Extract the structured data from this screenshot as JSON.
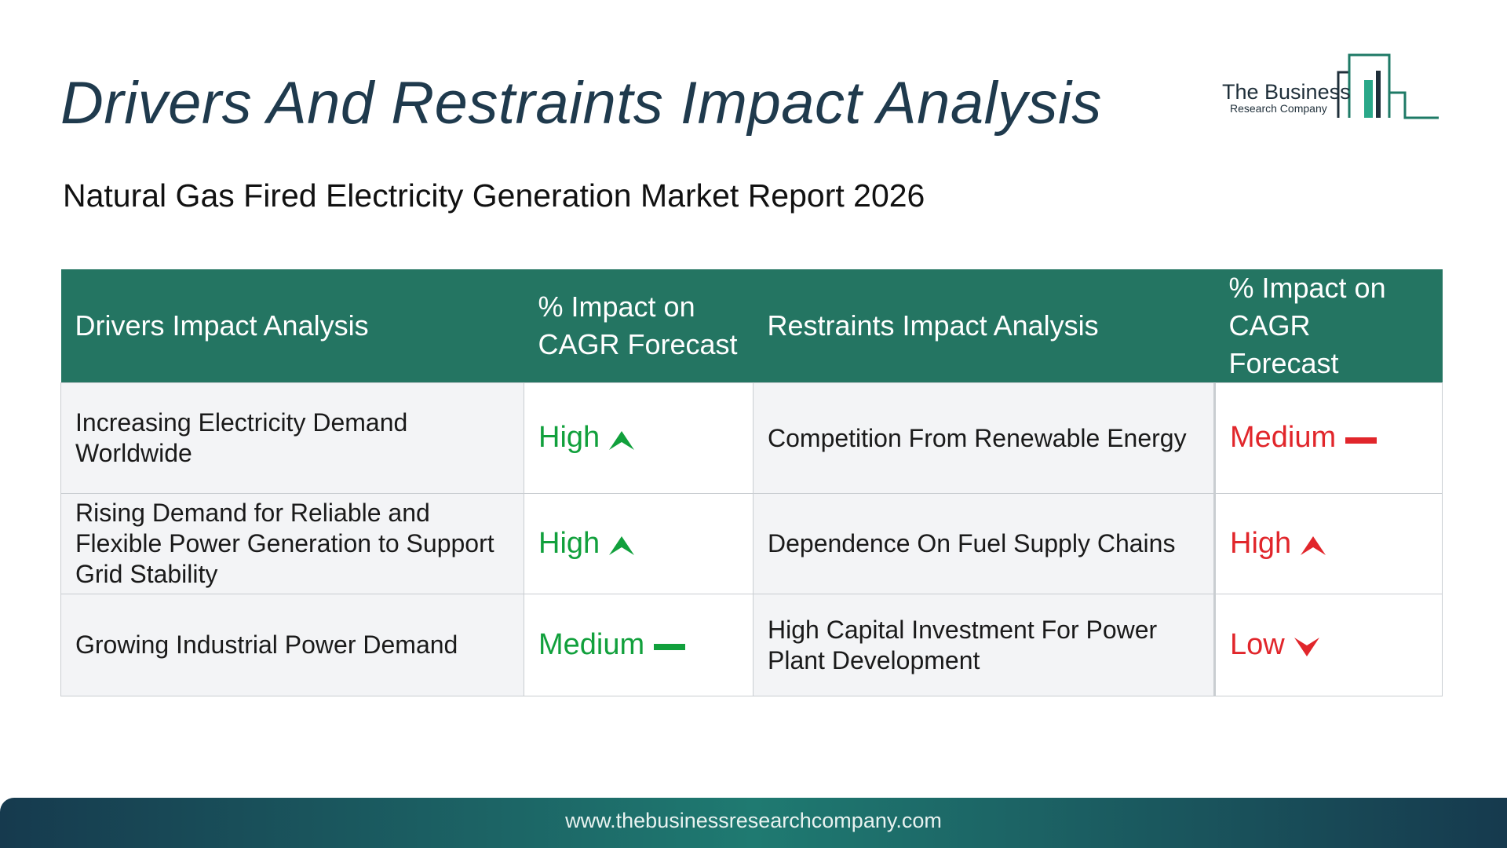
{
  "title": "Drivers And Restraints Impact Analysis",
  "subtitle": "Natural Gas Fired Electricity Generation Market Report 2026",
  "logo": {
    "name": "The Business",
    "tagline": "Research Company"
  },
  "table": {
    "headers": {
      "drivers": "Drivers Impact Analysis",
      "drivers_impact_line1": "% Impact on",
      "drivers_impact_line2": "CAGR Forecast",
      "restraints": "Restraints Impact Analysis",
      "restraints_impact_line1": "% Impact on",
      "restraints_impact_line2": "CAGR Forecast"
    },
    "rows": [
      {
        "driver": "Increasing Electricity Demand Worldwide",
        "driver_level": "High",
        "driver_icon": "up-arrow-icon",
        "restraint": "Competition From Renewable Energy",
        "restraint_level": "Medium",
        "restraint_icon": "dash-icon"
      },
      {
        "driver": "Rising Demand for Reliable and Flexible Power Generation to Support Grid Stability",
        "driver_level": "High",
        "driver_icon": "up-arrow-icon",
        "restraint": "Dependence On Fuel Supply Chains",
        "restraint_level": "High",
        "restraint_icon": "up-arrow-icon"
      },
      {
        "driver": "Growing Industrial Power Demand",
        "driver_level": "Medium",
        "driver_icon": "dash-icon",
        "restraint": "High Capital Investment For Power Plant Development",
        "restraint_level": "Low",
        "restraint_icon": "down-arrow-icon"
      }
    ]
  },
  "colors": {
    "header_bg": "#247562",
    "driver_level": "#11a03c",
    "restraint_level": "#e1262b",
    "title": "#1f3a4d"
  },
  "footer": {
    "url": "www.thebusinessresearchcompany.com"
  }
}
